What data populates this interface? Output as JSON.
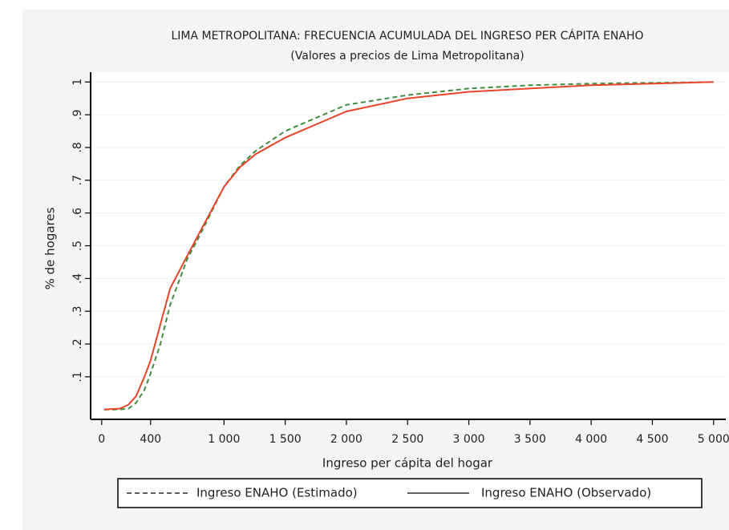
{
  "chart_data": {
    "type": "line",
    "title": "LIMA METROPOLITANA: FRECUENCIA ACUMULADA DEL INGRESO PER CÁPITA ENAHO",
    "subtitle": "(Valores a precios de Lima Metropolitana)",
    "x_label": "Ingreso per cápita del hogar",
    "y_label": "% de hogares",
    "x": [
      20,
      150,
      220,
      280,
      350,
      400,
      480,
      560,
      700,
      800,
      1000,
      1130,
      1260,
      1500,
      2000,
      2500,
      3000,
      3500,
      4000,
      5000
    ],
    "series": [
      {
        "name": "Ingreso ENAHO (Estimado)",
        "color": "#3f8f3f",
        "line_style": "dashed",
        "values": [
          0,
          0,
          0.003,
          0.02,
          0.06,
          0.11,
          0.2,
          0.32,
          0.46,
          0.53,
          0.68,
          0.745,
          0.79,
          0.85,
          0.93,
          0.96,
          0.98,
          0.99,
          0.995,
          1
        ]
      },
      {
        "name": "Ingreso ENAHO (Observado)",
        "color": "#e8442a",
        "line_style": "solid",
        "values": [
          0,
          0.003,
          0.015,
          0.04,
          0.1,
          0.15,
          0.26,
          0.37,
          0.47,
          0.54,
          0.68,
          0.74,
          0.78,
          0.83,
          0.91,
          0.95,
          0.97,
          0.98,
          0.99,
          1
        ]
      }
    ],
    "xlim": [
      -90,
      5100
    ],
    "xticks": [
      0,
      400,
      {
        "value": 1000,
        "label": "1 000"
      },
      {
        "value": 1500,
        "label": "1 500"
      },
      {
        "value": 2000,
        "label": "2 000"
      },
      {
        "value": 2500,
        "label": "2 500"
      },
      {
        "value": 3000,
        "label": "3 000"
      },
      {
        "value": 3500,
        "label": "3 500"
      },
      {
        "value": 4000,
        "label": "4 000"
      },
      {
        "value": 4500,
        "label": "4 500"
      },
      {
        "value": 5000,
        "label": "5 000"
      }
    ],
    "ylim": [
      -0.03,
      1.03
    ],
    "yticks": [
      {
        "value": 0.1,
        "label": ".1"
      },
      {
        "value": 0.2,
        "label": ".2"
      },
      {
        "value": 0.3,
        "label": ".3"
      },
      {
        "value": 0.4,
        "label": ".4"
      },
      {
        "value": 0.5,
        "label": ".5"
      },
      {
        "value": 0.6,
        "label": ".6"
      },
      {
        "value": 0.7,
        "label": ".7"
      },
      {
        "value": 0.8,
        "label": ".8"
      },
      {
        "value": 0.9,
        "label": ".9"
      },
      1
    ],
    "grid": true,
    "legend": "bottom"
  }
}
